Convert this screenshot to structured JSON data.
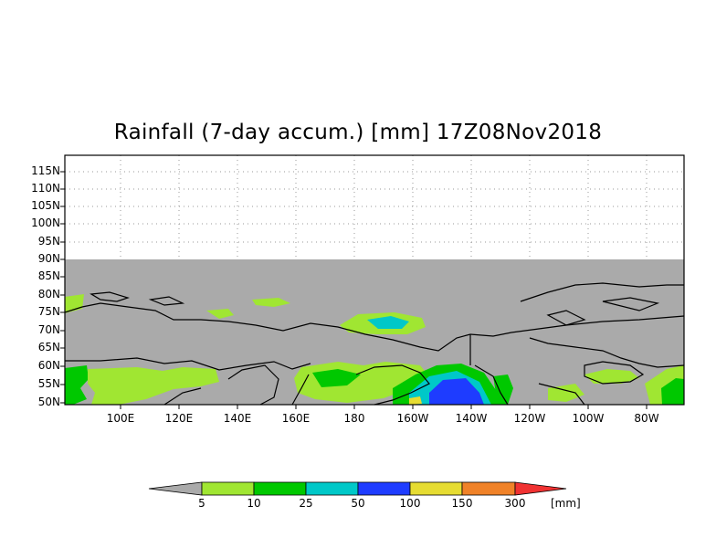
{
  "title": "Rainfall (7-day accum.) [mm] 17Z08Nov2018",
  "map": {
    "lat_labels": [
      "115N",
      "110N",
      "105N",
      "100N",
      "95N",
      "90N",
      "85N",
      "80N",
      "75N",
      "70N",
      "65N",
      "60N",
      "55N",
      "50N"
    ],
    "lon_labels": [
      "100E",
      "120E",
      "140E",
      "160E",
      "180",
      "160W",
      "140W",
      "120W",
      "100W",
      "80W"
    ],
    "land_color": "#aaaaaa",
    "colors": {
      "light_green": "#a0e632",
      "green": "#00c800",
      "teal": "#00c8c8",
      "blue": "#1e3cff",
      "yellow": "#e6dc32",
      "orange": "#f08228"
    }
  },
  "colorbar": {
    "labels": [
      "5",
      "10",
      "25",
      "50",
      "100",
      "150",
      "300"
    ],
    "units": "[mm]",
    "colors": [
      "#aaaaaa",
      "#a0e632",
      "#00c800",
      "#00c8c8",
      "#1e3cff",
      "#e6dc32",
      "#f08228",
      "#f03232"
    ]
  }
}
